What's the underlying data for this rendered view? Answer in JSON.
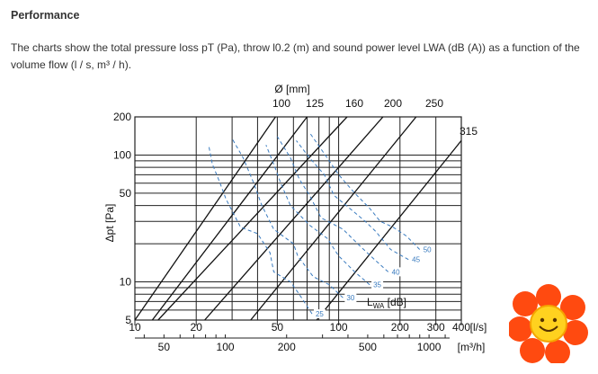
{
  "section": {
    "title": "Performance",
    "description": "The charts show the total pressure loss pT (Pa), throw l0.2 (m) and sound power level LWA (dB (A)) as a function of the volume flow (l / s, m³ / h)."
  },
  "chart_data": {
    "type": "line",
    "scale": "log-log",
    "grid": true,
    "ylabel": "Δpt [Pa]",
    "y_ticks": [
      5,
      10,
      50,
      100,
      200
    ],
    "ylim": [
      5,
      200
    ],
    "xlabel_ls": "[l/s]",
    "x_ticks_ls": [
      10,
      20,
      50,
      100,
      200,
      300,
      400
    ],
    "xlim_ls": [
      10,
      400
    ],
    "xlabel_m3h": "[m³/h]",
    "x_ticks_m3h": [
      50,
      100,
      200,
      500,
      1000
    ],
    "top_axis_label": "Ø [mm]",
    "diameters": [
      "100",
      "125",
      "160",
      "200",
      "250",
      "315"
    ],
    "diameter_lines": [
      {
        "name": "100",
        "points": [
          [
            10,
            5
          ],
          [
            49,
            200
          ]
        ]
      },
      {
        "name": "125",
        "points": [
          [
            10,
            3.3
          ],
          [
            70,
            200
          ]
        ]
      },
      {
        "name": "160",
        "points": [
          [
            13,
            5
          ],
          [
            110,
            200
          ]
        ]
      },
      {
        "name": "200",
        "points": [
          [
            22,
            5
          ],
          [
            165,
            200
          ]
        ]
      },
      {
        "name": "250",
        "points": [
          [
            37,
            5
          ],
          [
            240,
            200
          ]
        ]
      },
      {
        "name": "315",
        "points": [
          [
            78,
            5
          ],
          [
            400,
            130
          ]
        ]
      }
    ],
    "sound_label": "LWA [dB]",
    "sound_levels": [
      {
        "name": "25",
        "points": [
          [
            74,
            5.6
          ],
          [
            64,
            8
          ],
          [
            58,
            10
          ],
          [
            48,
            12
          ],
          [
            46,
            17
          ],
          [
            40,
            24
          ],
          [
            33,
            27
          ],
          [
            28,
            45
          ],
          [
            26,
            62
          ],
          [
            24,
            85
          ],
          [
            23,
            120
          ]
        ]
      },
      {
        "name": "30",
        "points": [
          [
            105,
            7.5
          ],
          [
            90,
            9.5
          ],
          [
            75,
            11
          ],
          [
            63,
            16
          ],
          [
            60,
            20
          ],
          [
            48,
            26
          ],
          [
            42,
            40
          ],
          [
            38,
            62
          ],
          [
            34,
            95
          ],
          [
            30,
            135
          ]
        ]
      },
      {
        "name": "35",
        "points": [
          [
            142,
            9.5
          ],
          [
            120,
            12
          ],
          [
            100,
            16
          ],
          [
            88,
            22
          ],
          [
            72,
            28
          ],
          [
            58,
            40
          ],
          [
            52,
            60
          ],
          [
            48,
            85
          ],
          [
            44,
            120
          ]
        ]
      },
      {
        "name": "40",
        "points": [
          [
            175,
            12
          ],
          [
            150,
            15
          ],
          [
            128,
            19
          ],
          [
            105,
            26
          ],
          [
            82,
            32
          ],
          [
            72,
            48
          ],
          [
            64,
            65
          ],
          [
            58,
            95
          ],
          [
            50,
            140
          ]
        ]
      },
      {
        "name": "45",
        "points": [
          [
            220,
            15
          ],
          [
            180,
            18
          ],
          [
            152,
            25
          ],
          [
            135,
            30
          ],
          [
            118,
            36
          ],
          [
            95,
            48
          ],
          [
            85,
            70
          ],
          [
            72,
            95
          ],
          [
            62,
            130
          ]
        ]
      },
      {
        "name": "50",
        "points": [
          [
            250,
            18
          ],
          [
            215,
            23
          ],
          [
            185,
            27
          ],
          [
            160,
            30
          ],
          [
            142,
            38
          ],
          [
            120,
            50
          ],
          [
            100,
            70
          ],
          [
            86,
            100
          ],
          [
            72,
            150
          ]
        ]
      }
    ]
  }
}
